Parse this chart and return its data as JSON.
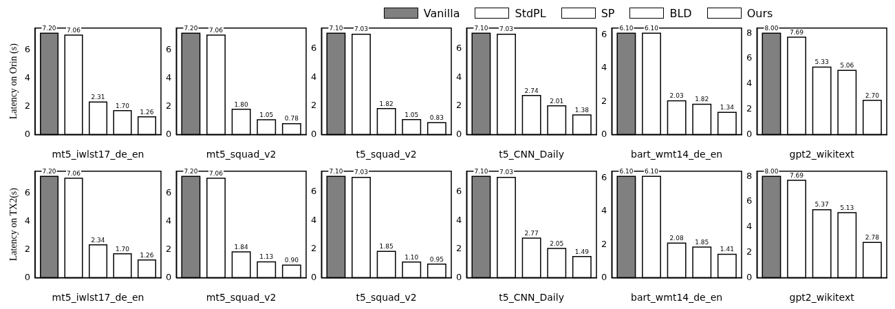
{
  "chart_data": [
    {
      "type": "bar",
      "xlabel": "mt5_iwlst17_de_en",
      "ylabel": "Latency on Orin (s)",
      "categories": [
        null
      ],
      "legend": "top",
      "data_labels": true,
      "grid": false,
      "ylim": [
        0,
        7.56
      ],
      "yticks": [
        0,
        2,
        4,
        6
      ],
      "series": [
        {
          "name": "Vanilla",
          "color": "#808080",
          "values": [
            7.2
          ],
          "value_labels": [
            "7.20"
          ]
        },
        {
          "name": "StdPL",
          "color": "#ffffff",
          "values": [
            7.06
          ],
          "value_labels": [
            "7.06"
          ]
        },
        {
          "name": "SP",
          "color": "#ffffff",
          "values": [
            2.31
          ],
          "value_labels": [
            "2.31"
          ]
        },
        {
          "name": "BLD",
          "color": "#ffffff",
          "values": [
            1.7
          ],
          "value_labels": [
            "1.70"
          ]
        },
        {
          "name": "Ours",
          "color": "#ffffff",
          "values": [
            1.26
          ],
          "value_labels": [
            "1.26"
          ]
        }
      ]
    },
    {
      "type": "bar",
      "xlabel": "mt5_squad_v2",
      "categories": [
        null
      ],
      "data_labels": true,
      "grid": false,
      "ylim": [
        0,
        7.56
      ],
      "yticks": [
        0,
        2,
        4,
        6
      ],
      "series": [
        {
          "color": "#808080",
          "values": [
            7.2
          ],
          "value_labels": [
            "7.20"
          ]
        },
        {
          "color": "#ffffff",
          "values": [
            7.06
          ],
          "value_labels": [
            "7.06"
          ]
        },
        {
          "color": "#ffffff",
          "values": [
            1.8
          ],
          "value_labels": [
            "1.80"
          ]
        },
        {
          "color": "#ffffff",
          "values": [
            1.05
          ],
          "value_labels": [
            "1.05"
          ]
        },
        {
          "color": "#ffffff",
          "values": [
            0.78
          ],
          "value_labels": [
            "0.78"
          ]
        }
      ]
    },
    {
      "type": "bar",
      "xlabel": "t5_squad_v2",
      "categories": [
        null
      ],
      "data_labels": true,
      "grid": false,
      "ylim": [
        0,
        7.455
      ],
      "yticks": [
        0,
        2,
        4,
        6
      ],
      "series": [
        {
          "color": "#808080",
          "values": [
            7.1
          ],
          "value_labels": [
            "7.10"
          ]
        },
        {
          "color": "#ffffff",
          "values": [
            7.03
          ],
          "value_labels": [
            "7.03"
          ]
        },
        {
          "color": "#ffffff",
          "values": [
            1.82
          ],
          "value_labels": [
            "1.82"
          ]
        },
        {
          "color": "#ffffff",
          "values": [
            1.05
          ],
          "value_labels": [
            "1.05"
          ]
        },
        {
          "color": "#ffffff",
          "values": [
            0.83
          ],
          "value_labels": [
            "0.83"
          ]
        }
      ]
    },
    {
      "type": "bar",
      "xlabel": "t5_CNN_Daily",
      "categories": [
        null
      ],
      "data_labels": true,
      "grid": false,
      "ylim": [
        0,
        7.455
      ],
      "yticks": [
        0,
        2,
        4,
        6
      ],
      "series": [
        {
          "color": "#808080",
          "values": [
            7.1
          ],
          "value_labels": [
            "7.10"
          ]
        },
        {
          "color": "#ffffff",
          "values": [
            7.03
          ],
          "value_labels": [
            "7.03"
          ]
        },
        {
          "color": "#ffffff",
          "values": [
            2.74
          ],
          "value_labels": [
            "2.74"
          ]
        },
        {
          "color": "#ffffff",
          "values": [
            2.01
          ],
          "value_labels": [
            "2.01"
          ]
        },
        {
          "color": "#ffffff",
          "values": [
            1.38
          ],
          "value_labels": [
            "1.38"
          ]
        }
      ]
    },
    {
      "type": "bar",
      "xlabel": "bart_wmt14_de_en",
      "categories": [
        null
      ],
      "data_labels": true,
      "grid": false,
      "ylim": [
        0,
        6.405
      ],
      "yticks": [
        0,
        2,
        4,
        6
      ],
      "series": [
        {
          "color": "#808080",
          "values": [
            6.1
          ],
          "value_labels": [
            "6.10"
          ]
        },
        {
          "color": "#ffffff",
          "values": [
            6.1
          ],
          "value_labels": [
            "6.10"
          ]
        },
        {
          "color": "#ffffff",
          "values": [
            2.03
          ],
          "value_labels": [
            "2.03"
          ]
        },
        {
          "color": "#ffffff",
          "values": [
            1.82
          ],
          "value_labels": [
            "1.82"
          ]
        },
        {
          "color": "#ffffff",
          "values": [
            1.34
          ],
          "value_labels": [
            "1.34"
          ]
        }
      ]
    },
    {
      "type": "bar",
      "xlabel": "gpt2_wikitext",
      "categories": [
        null
      ],
      "data_labels": true,
      "grid": false,
      "ylim": [
        0,
        8.4
      ],
      "yticks": [
        0,
        2,
        4,
        6,
        8
      ],
      "series": [
        {
          "color": "#808080",
          "values": [
            8.0
          ],
          "value_labels": [
            "8.00"
          ]
        },
        {
          "color": "#ffffff",
          "values": [
            7.69
          ],
          "value_labels": [
            "7.69"
          ]
        },
        {
          "color": "#ffffff",
          "values": [
            5.33
          ],
          "value_labels": [
            "5.33"
          ]
        },
        {
          "color": "#ffffff",
          "values": [
            5.06
          ],
          "value_labels": [
            "5.06"
          ]
        },
        {
          "color": "#ffffff",
          "values": [
            2.7
          ],
          "value_labels": [
            "2.70"
          ]
        }
      ]
    },
    {
      "type": "bar",
      "xlabel": "mt5_iwlst17_de_en",
      "ylabel": "Latency on TX2(s)",
      "categories": [
        null
      ],
      "data_labels": true,
      "grid": false,
      "ylim": [
        0,
        7.56
      ],
      "yticks": [
        0,
        2,
        4,
        6
      ],
      "series": [
        {
          "color": "#808080",
          "values": [
            7.2
          ],
          "value_labels": [
            "7.20"
          ]
        },
        {
          "color": "#ffffff",
          "values": [
            7.06
          ],
          "value_labels": [
            "7.06"
          ]
        },
        {
          "color": "#ffffff",
          "values": [
            2.34
          ],
          "value_labels": [
            "2.34"
          ]
        },
        {
          "color": "#ffffff",
          "values": [
            1.7
          ],
          "value_labels": [
            "1.70"
          ]
        },
        {
          "color": "#ffffff",
          "values": [
            1.26
          ],
          "value_labels": [
            "1.26"
          ]
        }
      ]
    },
    {
      "type": "bar",
      "xlabel": "mt5_squad_v2",
      "categories": [
        null
      ],
      "data_labels": true,
      "grid": false,
      "ylim": [
        0,
        7.56
      ],
      "yticks": [
        0,
        2,
        4,
        6
      ],
      "series": [
        {
          "color": "#808080",
          "values": [
            7.2
          ],
          "value_labels": [
            "7.20"
          ]
        },
        {
          "color": "#ffffff",
          "values": [
            7.06
          ],
          "value_labels": [
            "7.06"
          ]
        },
        {
          "color": "#ffffff",
          "values": [
            1.84
          ],
          "value_labels": [
            "1.84"
          ]
        },
        {
          "color": "#ffffff",
          "values": [
            1.13
          ],
          "value_labels": [
            "1.13"
          ]
        },
        {
          "color": "#ffffff",
          "values": [
            0.9
          ],
          "value_labels": [
            "0.90"
          ]
        }
      ]
    },
    {
      "type": "bar",
      "xlabel": "t5_squad_v2",
      "categories": [
        null
      ],
      "data_labels": true,
      "grid": false,
      "ylim": [
        0,
        7.455
      ],
      "yticks": [
        0,
        2,
        4,
        6
      ],
      "series": [
        {
          "color": "#808080",
          "values": [
            7.1
          ],
          "value_labels": [
            "7.10"
          ]
        },
        {
          "color": "#ffffff",
          "values": [
            7.03
          ],
          "value_labels": [
            "7.03"
          ]
        },
        {
          "color": "#ffffff",
          "values": [
            1.85
          ],
          "value_labels": [
            "1.85"
          ]
        },
        {
          "color": "#ffffff",
          "values": [
            1.1
          ],
          "value_labels": [
            "1.10"
          ]
        },
        {
          "color": "#ffffff",
          "values": [
            0.95
          ],
          "value_labels": [
            "0.95"
          ]
        }
      ]
    },
    {
      "type": "bar",
      "xlabel": "t5_CNN_Daily",
      "categories": [
        null
      ],
      "data_labels": true,
      "grid": false,
      "ylim": [
        0,
        7.455
      ],
      "yticks": [
        0,
        2,
        4,
        6
      ],
      "series": [
        {
          "color": "#808080",
          "values": [
            7.1
          ],
          "value_labels": [
            "7.10"
          ]
        },
        {
          "color": "#ffffff",
          "values": [
            7.03
          ],
          "value_labels": [
            "7.03"
          ]
        },
        {
          "color": "#ffffff",
          "values": [
            2.77
          ],
          "value_labels": [
            "2.77"
          ]
        },
        {
          "color": "#ffffff",
          "values": [
            2.05
          ],
          "value_labels": [
            "2.05"
          ]
        },
        {
          "color": "#ffffff",
          "values": [
            1.49
          ],
          "value_labels": [
            "1.49"
          ]
        }
      ]
    },
    {
      "type": "bar",
      "xlabel": "bart_wmt14_de_en",
      "categories": [
        null
      ],
      "data_labels": true,
      "grid": false,
      "ylim": [
        0,
        6.405
      ],
      "yticks": [
        0,
        2,
        4,
        6
      ],
      "series": [
        {
          "color": "#808080",
          "values": [
            6.1
          ],
          "value_labels": [
            "6.10"
          ]
        },
        {
          "color": "#ffffff",
          "values": [
            6.1
          ],
          "value_labels": [
            "6.10"
          ]
        },
        {
          "color": "#ffffff",
          "values": [
            2.08
          ],
          "value_labels": [
            "2.08"
          ]
        },
        {
          "color": "#ffffff",
          "values": [
            1.85
          ],
          "value_labels": [
            "1.85"
          ]
        },
        {
          "color": "#ffffff",
          "values": [
            1.41
          ],
          "value_labels": [
            "1.41"
          ]
        }
      ]
    },
    {
      "type": "bar",
      "xlabel": "gpt2_wikitext",
      "categories": [
        null
      ],
      "data_labels": true,
      "grid": false,
      "ylim": [
        0,
        8.4
      ],
      "yticks": [
        0,
        2,
        4,
        6,
        8
      ],
      "series": [
        {
          "color": "#808080",
          "values": [
            8.0
          ],
          "value_labels": [
            "8.00"
          ]
        },
        {
          "color": "#ffffff",
          "values": [
            7.69
          ],
          "value_labels": [
            "7.69"
          ]
        },
        {
          "color": "#ffffff",
          "values": [
            5.37
          ],
          "value_labels": [
            "5.37"
          ]
        },
        {
          "color": "#ffffff",
          "values": [
            5.13
          ],
          "value_labels": [
            "5.13"
          ]
        },
        {
          "color": "#ffffff",
          "values": [
            2.78
          ],
          "value_labels": [
            "2.78"
          ]
        }
      ]
    }
  ]
}
